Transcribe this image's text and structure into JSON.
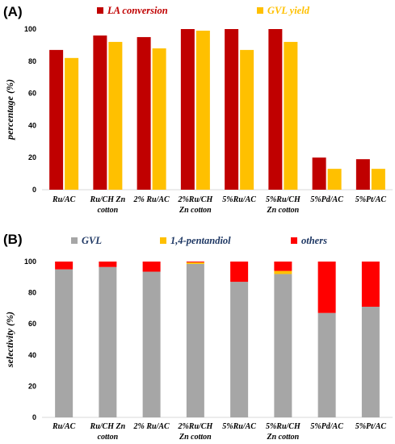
{
  "chart_data": [
    {
      "panel": "(A)",
      "type": "bar",
      "categories": [
        [
          "Ru/AC"
        ],
        [
          "Ru/CH Zn",
          "cotton"
        ],
        [
          "2% Ru/AC"
        ],
        [
          "2%Ru/CH",
          "Zn cotton"
        ],
        [
          "5%Ru/AC"
        ],
        [
          "5%Ru/CH",
          "Zn cotton"
        ],
        [
          "5%Pd/AC"
        ],
        [
          "5%Pt/AC"
        ]
      ],
      "series": [
        {
          "name": "LA conversion",
          "color": "#c00000",
          "values": [
            87,
            96,
            95,
            100,
            100,
            100,
            20,
            19
          ]
        },
        {
          "name": "GVL yield",
          "color": "#ffc000",
          "values": [
            82,
            92,
            88,
            99,
            87,
            92,
            13,
            13
          ]
        }
      ],
      "ylabel": "percentage (%)",
      "ylim": [
        0,
        100
      ],
      "yticks": [
        0,
        20,
        40,
        60,
        80,
        100
      ],
      "grid": false,
      "legend": "top"
    },
    {
      "panel": "(B)",
      "type": "stacked-bar",
      "categories": [
        [
          "Ru/AC"
        ],
        [
          "Ru/CH Zn",
          "cotton"
        ],
        [
          "2% Ru/AC"
        ],
        [
          "2%Ru/CH",
          "Zn cotton"
        ],
        [
          "5%Ru/AC"
        ],
        [
          "5%Ru/CH",
          "Zn cotton"
        ],
        [
          "5%Pd/AC"
        ],
        [
          "5%Pt/AC"
        ]
      ],
      "series": [
        {
          "name": "GVL",
          "color": "#a6a6a6",
          "label_color": "#1f3864",
          "values": [
            95,
            96.5,
            93.5,
            98.5,
            87,
            92,
            67,
            71
          ]
        },
        {
          "name": "1,4-pentandiol",
          "color": "#ffc000",
          "label_color": "#1f3864",
          "values": [
            0,
            0,
            0,
            1,
            0,
            2,
            0,
            0
          ]
        },
        {
          "name": "others",
          "color": "#ff0000",
          "label_color": "#1f3864",
          "values": [
            5,
            3.5,
            6.5,
            0.5,
            13,
            6,
            33,
            29
          ]
        }
      ],
      "ylabel": "selectivity (%)",
      "ylim": [
        0,
        100
      ],
      "yticks": [
        0,
        20,
        40,
        60,
        80,
        100
      ],
      "grid": false,
      "legend": "top"
    }
  ]
}
